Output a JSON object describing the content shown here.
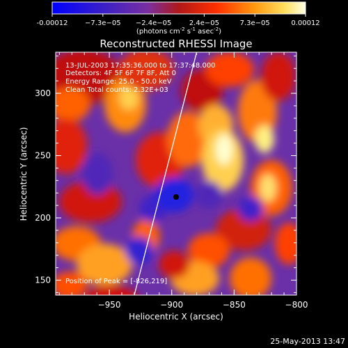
{
  "colorbar": {
    "tick_labels": [
      "-0.00012",
      "−7.3e−05",
      "−2.4e−05",
      "2.4e−05",
      "7.3e−05",
      "0.00012"
    ],
    "unit_main": "(photons cm",
    "unit_exp1": "-2",
    "unit_mid": " s",
    "unit_exp2": "-1",
    "unit_tail": " asec",
    "unit_exp3": "-2",
    "unit_close": ")"
  },
  "chart_data": {
    "type": "heatmap",
    "title": "Reconstructed RHESSI Image",
    "xlabel": "Heliocentric X (arcsec)",
    "ylabel": "Heliocentric Y (arcsec)",
    "xlim": [
      -993,
      -800
    ],
    "ylim": [
      138,
      333
    ],
    "xticks": [
      -950,
      -900,
      -850,
      -800
    ],
    "yticks": [
      150,
      200,
      250,
      300
    ],
    "xtick_labels": [
      "−950",
      "−900",
      "−850",
      "−800"
    ],
    "ytick_labels": [
      "150",
      "200",
      "250",
      "300"
    ],
    "value_range": [
      -0.00012,
      0.00012
    ],
    "peak": [
      -826,
      219
    ],
    "limb_line": [
      [
        -930,
        138
      ],
      [
        -880,
        333
      ]
    ],
    "annotations": [
      "13-JUL-2003 17:35:36.000 to 17:37:48.000",
      "Detectors: 4F 5F 6F 7F 8F, Att 0",
      "Energy Range: 25.0 - 50.0 keV",
      "Clean    Total counts: 2.32E+03",
      "Position of Peak = [-826,219]"
    ]
  },
  "footer": {
    "date": "25-May-2013 13:47"
  },
  "colors": {
    "colorbar_stops": [
      "#0000ff",
      "#4020c0",
      "#6a2fa8",
      "#8c30a0",
      "#d01010",
      "#ff6a00",
      "#ffd040",
      "#ffffe0"
    ]
  }
}
